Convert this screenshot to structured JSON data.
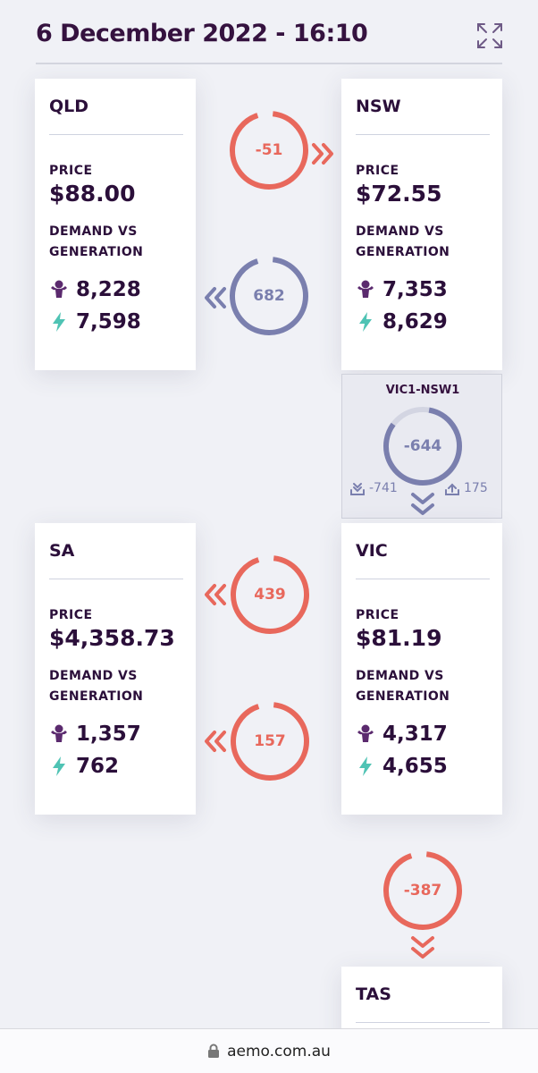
{
  "header": {
    "title": "6 December 2022 - 16:10"
  },
  "regions": {
    "qld": {
      "name": "QLD",
      "price_label": "PRICE",
      "price": "$88.00",
      "dvg_line1": "DEMAND VS",
      "dvg_line2": "GENERATION",
      "demand": "8,228",
      "generation": "7,598"
    },
    "nsw": {
      "name": "NSW",
      "price_label": "PRICE",
      "price": "$72.55",
      "dvg_line1": "DEMAND VS",
      "dvg_line2": "GENERATION",
      "demand": "7,353",
      "generation": "8,629"
    },
    "sa": {
      "name": "SA",
      "price_label": "PRICE",
      "price": "$4,358.73",
      "dvg_line1": "DEMAND VS",
      "dvg_line2": "GENERATION",
      "demand": "1,357",
      "generation": "762"
    },
    "vic": {
      "name": "VIC",
      "price_label": "PRICE",
      "price": "$81.19",
      "dvg_line1": "DEMAND VS",
      "dvg_line2": "GENERATION",
      "demand": "4,317",
      "generation": "4,655"
    },
    "tas": {
      "name": "TAS"
    }
  },
  "flows": {
    "qld_nsw_top": {
      "value": "-51",
      "direction": "right",
      "color": "#e8685c"
    },
    "qld_nsw_bottom": {
      "value": "682",
      "direction": "left",
      "color": "#7a7fae"
    },
    "vic_nsw": {
      "value": "-644",
      "direction": "down",
      "color": "#7a7fae"
    },
    "sa_vic_top": {
      "value": "439",
      "direction": "left",
      "color": "#e8685c"
    },
    "sa_vic_bottom": {
      "value": "157",
      "direction": "left",
      "color": "#e8685c"
    },
    "vic_tas": {
      "value": "-387",
      "direction": "down",
      "color": "#e8685c"
    }
  },
  "interconnector": {
    "name": "VIC1-NSW1",
    "import_limit": "-741",
    "export_limit": "175"
  },
  "browser": {
    "url": "aemo.com.au"
  },
  "colors": {
    "red": "#e8685c",
    "blue": "#7a7fae",
    "purple": "#5b2a6e",
    "teal": "#4fc3b4"
  }
}
